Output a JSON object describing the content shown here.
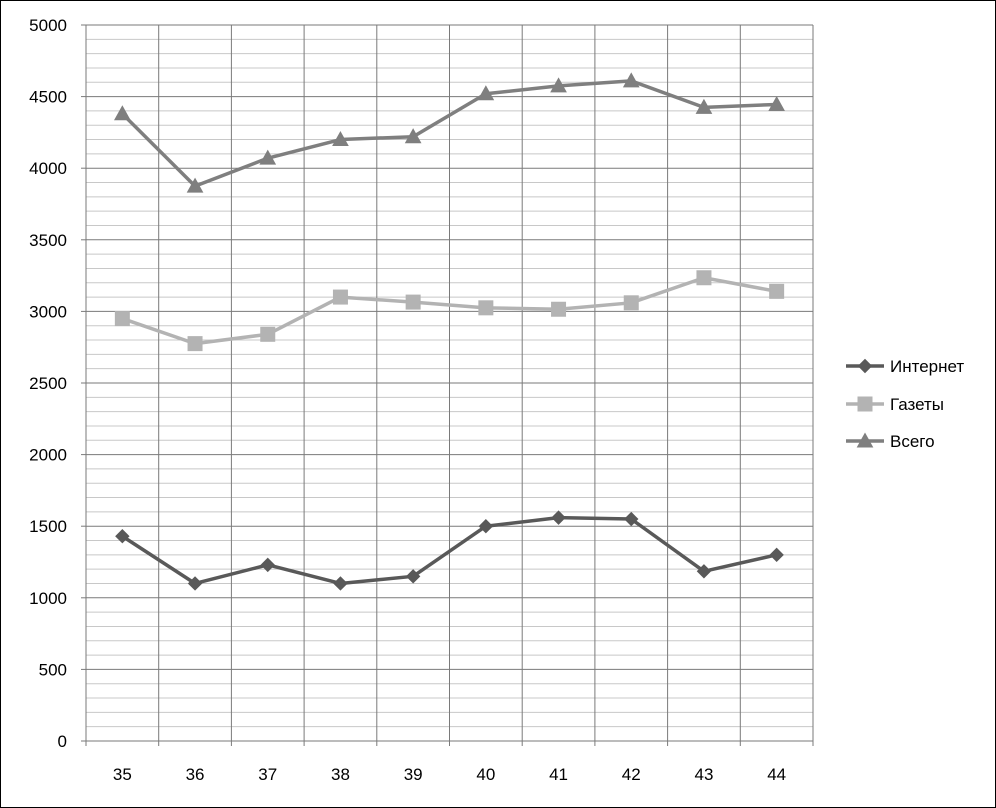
{
  "chart_data": {
    "type": "line",
    "title": "",
    "xlabel": "",
    "ylabel": "",
    "categories": [
      "35",
      "36",
      "37",
      "38",
      "39",
      "40",
      "41",
      "42",
      "43",
      "44"
    ],
    "ylim": [
      0,
      5000
    ],
    "y_major_step": 500,
    "y_minor_step": 100,
    "y_ticks": [
      "0",
      "500",
      "1000",
      "1500",
      "2000",
      "2500",
      "3000",
      "3500",
      "4000",
      "4500",
      "5000"
    ],
    "grid": true,
    "legend_position": "right",
    "series": [
      {
        "name": "Интернет",
        "marker": "diamond",
        "color": "#595959",
        "values": [
          1430,
          1100,
          1230,
          1100,
          1150,
          1500,
          1560,
          1550,
          1185,
          1300
        ]
      },
      {
        "name": "Газеты",
        "marker": "square",
        "color": "#b3b3b3",
        "values": [
          2950,
          2775,
          2840,
          3100,
          3065,
          3025,
          3015,
          3060,
          3235,
          3140
        ]
      },
      {
        "name": "Всего",
        "marker": "triangle",
        "color": "#7f7f7f",
        "values": [
          4380,
          3875,
          4070,
          4200,
          4220,
          4520,
          4575,
          4610,
          4425,
          4445
        ]
      }
    ]
  }
}
